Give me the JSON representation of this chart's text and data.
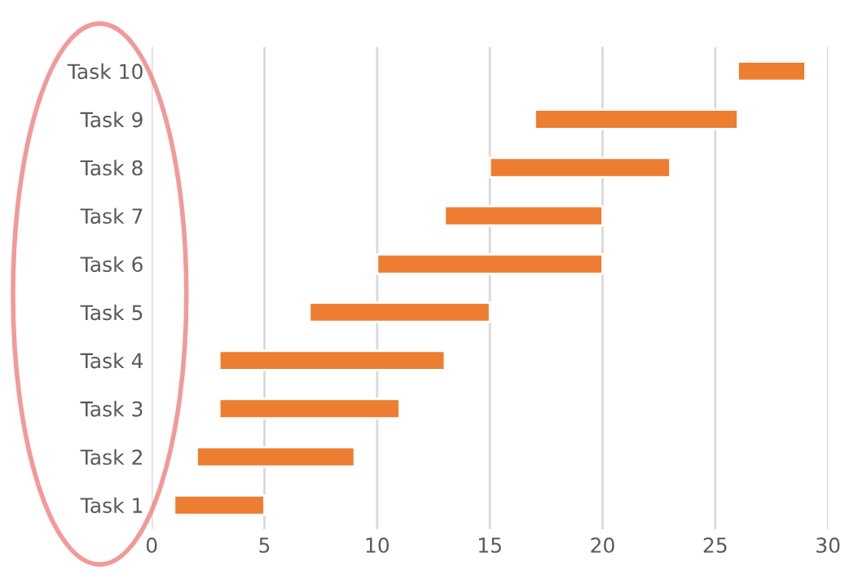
{
  "chart_data": {
    "type": "bar",
    "orientation": "horizontal",
    "categories": [
      "Task 10",
      "Task 9",
      "Task 8",
      "Task 7",
      "Task 6",
      "Task 5",
      "Task 4",
      "Task 3",
      "Task 2",
      "Task 1"
    ],
    "base": [
      26,
      17,
      15,
      13,
      10,
      7,
      3,
      3,
      2,
      1
    ],
    "values": [
      3,
      9,
      8,
      7,
      10,
      8,
      10,
      8,
      7,
      4
    ],
    "color": "#ed7d31",
    "xlim": [
      0,
      30
    ],
    "xticks": [
      0,
      5,
      10,
      15,
      20,
      25,
      30
    ],
    "grid": "x"
  }
}
